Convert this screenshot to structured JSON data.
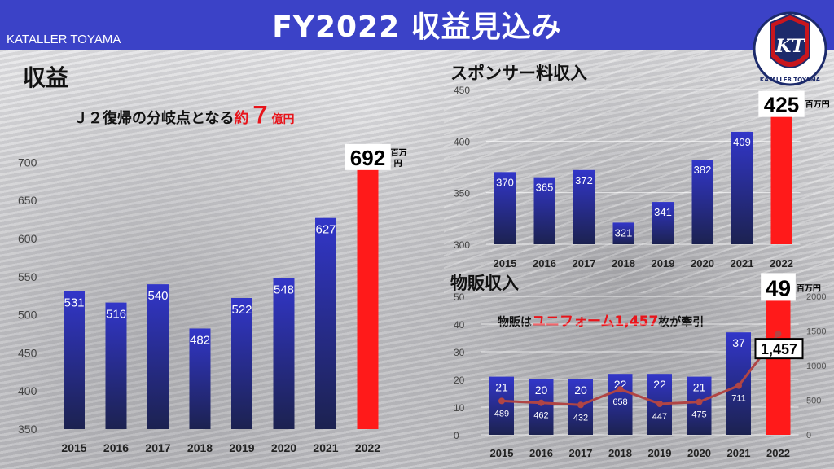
{
  "header": {
    "title": "FY2022 収益見込み",
    "brand": "KATALLER TOYAMA",
    "logo_initials": "KT",
    "logo_text": "KATALLER TOYAMA"
  },
  "colors": {
    "header": "#3b42c7",
    "bar_top": "#3236c9",
    "bar_bottom": "#1c2250",
    "highlight": "#ff1a1a",
    "line": "#b04545"
  },
  "revenue_title": "収益",
  "revenue_subtitle": {
    "prefix": "Ｊ２復帰の分岐点となる",
    "about": "約",
    "amount": "７",
    "unit": "億円"
  },
  "sponsor_title": "スポンサー料収入",
  "merch_title": "物販収入",
  "merch_callout": {
    "prefix": "物販は",
    "item": "ユニフォーム",
    "count": "1,457",
    "counter": "枚",
    "suffix": "が牽引"
  },
  "chart_data": [
    {
      "type": "bar",
      "title": "収益",
      "categories": [
        "2015",
        "2016",
        "2017",
        "2018",
        "2019",
        "2020",
        "2021",
        "2022"
      ],
      "values": [
        531,
        516,
        540,
        482,
        522,
        548,
        627,
        692
      ],
      "ylim": [
        350,
        710
      ],
      "yticks": [
        "350",
        "400",
        "450",
        "500",
        "550",
        "600",
        "650",
        "700"
      ],
      "highlight_label": "692",
      "highlight_unit": "百万円",
      "grid": false
    },
    {
      "type": "bar",
      "title": "スポンサー料収入",
      "categories": [
        "2015",
        "2016",
        "2017",
        "2018",
        "2019",
        "2020",
        "2021",
        "2022"
      ],
      "values": [
        370,
        365,
        372,
        321,
        341,
        382,
        409,
        425
      ],
      "ylim": [
        300,
        450
      ],
      "yticks": [
        "300",
        "350",
        "400",
        "450"
      ],
      "highlight_label": "425",
      "highlight_unit": "百万円",
      "grid": true
    },
    {
      "type": "bar",
      "title": "物販収入",
      "categories": [
        "2015",
        "2016",
        "2017",
        "2018",
        "2019",
        "2020",
        "2021",
        "2022"
      ],
      "values": [
        21,
        20,
        20,
        22,
        22,
        21,
        37,
        49
      ],
      "ylim": [
        0,
        50
      ],
      "yticks": [
        "0",
        "10",
        "20",
        "30",
        "40",
        "50"
      ],
      "highlight_label": "49",
      "highlight_unit": "百万円",
      "line_series": {
        "values": [
          489,
          462,
          432,
          658,
          447,
          475,
          711,
          1457
        ],
        "ylim": [
          0,
          2000
        ],
        "yticks": [
          "0",
          "500",
          "1000",
          "1500",
          "2000"
        ],
        "last_label": "1,457"
      },
      "grid": true
    }
  ]
}
